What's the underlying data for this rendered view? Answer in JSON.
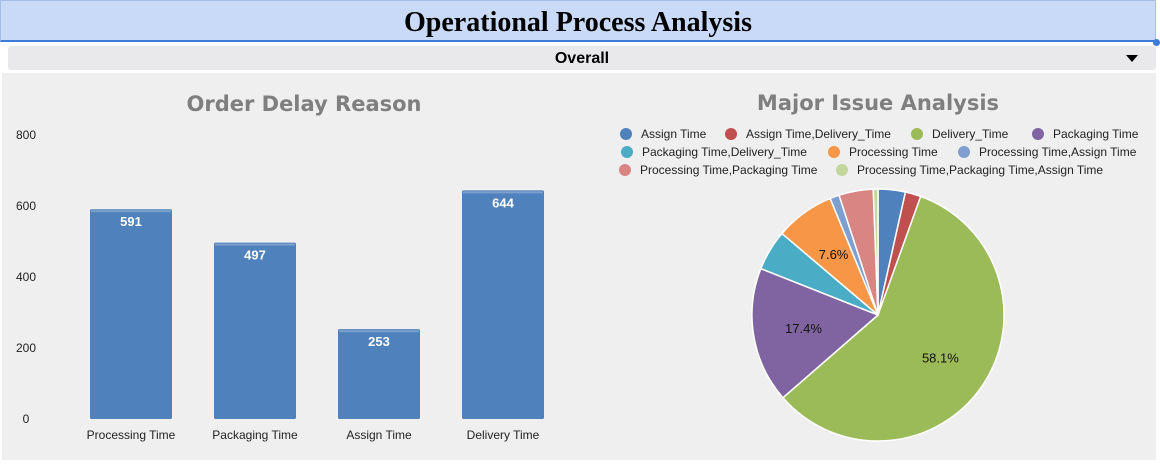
{
  "header": {
    "title": "Operational Process Analysis"
  },
  "filter": {
    "selected": "Overall"
  },
  "icons": {
    "dropdown": "caret-down-icon"
  },
  "colors": {
    "bar": "#4f81bd",
    "title_bar": "#c9daf8",
    "panel": "#efefef"
  },
  "chart_data": [
    {
      "type": "bar",
      "title": "Order Delay Reason",
      "categories": [
        "Processing Time",
        "Packaging Time",
        "Assign Time",
        "Delivery Time"
      ],
      "values": [
        591,
        497,
        253,
        644
      ],
      "value_labels": [
        "591",
        "497",
        "253",
        "644"
      ],
      "ylim": [
        0,
        800
      ],
      "yticks": [
        0,
        200,
        400,
        600,
        800
      ],
      "ytick_labels": [
        "0",
        "200",
        "400",
        "600",
        "800"
      ],
      "xlabel": "",
      "ylabel": "",
      "grid": false,
      "legend": "none",
      "color": "#4f81bd"
    },
    {
      "type": "pie",
      "title": "Major Issue Analysis",
      "legend": "top",
      "start_angle_deg": 0,
      "slices": [
        {
          "label": "Assign Time",
          "value": 3.5,
          "color": "#4f81bd",
          "shown_label": ""
        },
        {
          "label": "Assign Time,Delivery_Time",
          "value": 2.0,
          "color": "#c0504d",
          "shown_label": ""
        },
        {
          "label": "Delivery_Time",
          "value": 58.1,
          "color": "#9bbb59",
          "shown_label": "58.1%"
        },
        {
          "label": "Packaging Time",
          "value": 17.4,
          "color": "#8064a2",
          "shown_label": "17.4%"
        },
        {
          "label": "Packaging Time,Delivery_Time",
          "value": 5.2,
          "color": "#4bacc6",
          "shown_label": ""
        },
        {
          "label": "Processing Time",
          "value": 7.6,
          "color": "#f79646",
          "shown_label": "7.6%"
        },
        {
          "label": "Processing Time,Assign Time",
          "value": 1.2,
          "color": "#7f9fd0",
          "shown_label": ""
        },
        {
          "label": "Processing Time,Packaging Time",
          "value": 4.4,
          "color": "#d98584",
          "shown_label": ""
        },
        {
          "label": "Processing Time,Packaging Time,Assign Time",
          "value": 0.6,
          "color": "#c3d69b",
          "shown_label": ""
        }
      ]
    }
  ]
}
